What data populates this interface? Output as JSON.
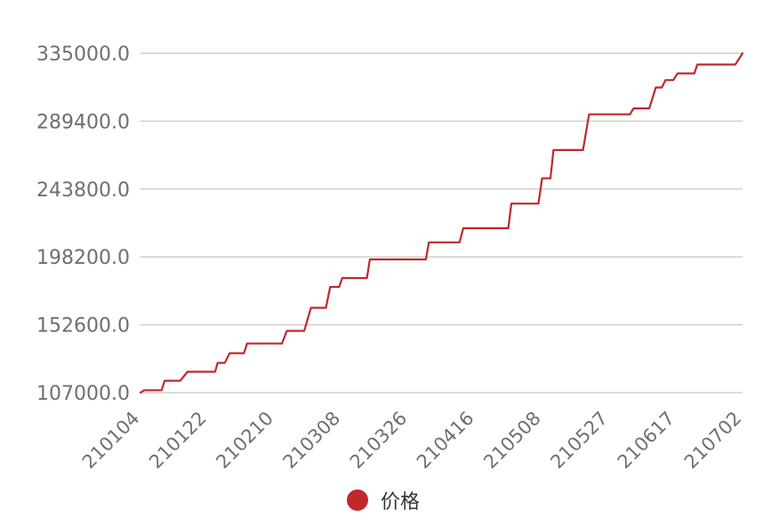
{
  "chart_data": {
    "type": "line",
    "categories": [
      "210104",
      "210122",
      "210210",
      "210308",
      "210326",
      "210416",
      "210508",
      "210527",
      "210617",
      "210702"
    ],
    "y_ticks": [
      "107000.0",
      "152600.0",
      "198200.0",
      "243800.0",
      "289400.0",
      "335000.0"
    ],
    "ylim": [
      107000,
      335000
    ],
    "grid": true,
    "legend_position": "bottom",
    "series": [
      {
        "name": "价格",
        "color": "#c0282a",
        "points": [
          [
            0.0,
            107000
          ],
          [
            0.006,
            108600
          ],
          [
            0.035,
            108600
          ],
          [
            0.04,
            115000
          ],
          [
            0.066,
            115000
          ],
          [
            0.078,
            121000
          ],
          [
            0.124,
            121000
          ],
          [
            0.128,
            127000
          ],
          [
            0.14,
            127000
          ],
          [
            0.148,
            133500
          ],
          [
            0.172,
            133500
          ],
          [
            0.177,
            140000
          ],
          [
            0.235,
            140000
          ],
          [
            0.243,
            148500
          ],
          [
            0.272,
            148500
          ],
          [
            0.283,
            164000
          ],
          [
            0.308,
            164000
          ],
          [
            0.315,
            178000
          ],
          [
            0.33,
            178000
          ],
          [
            0.335,
            184000
          ],
          [
            0.376,
            184000
          ],
          [
            0.381,
            196500
          ],
          [
            0.474,
            196500
          ],
          [
            0.479,
            208000
          ],
          [
            0.53,
            208000
          ],
          [
            0.536,
            217500
          ],
          [
            0.611,
            217500
          ],
          [
            0.616,
            234000
          ],
          [
            0.661,
            234000
          ],
          [
            0.667,
            251000
          ],
          [
            0.681,
            251000
          ],
          [
            0.686,
            270000
          ],
          [
            0.735,
            270000
          ],
          [
            0.745,
            294000
          ],
          [
            0.813,
            294000
          ],
          [
            0.819,
            298000
          ],
          [
            0.845,
            298000
          ],
          [
            0.856,
            312000
          ],
          [
            0.866,
            312000
          ],
          [
            0.872,
            317000
          ],
          [
            0.885,
            317000
          ],
          [
            0.892,
            321500
          ],
          [
            0.92,
            321500
          ],
          [
            0.925,
            327500
          ],
          [
            0.988,
            327500
          ],
          [
            1.0,
            335000
          ]
        ]
      }
    ]
  }
}
